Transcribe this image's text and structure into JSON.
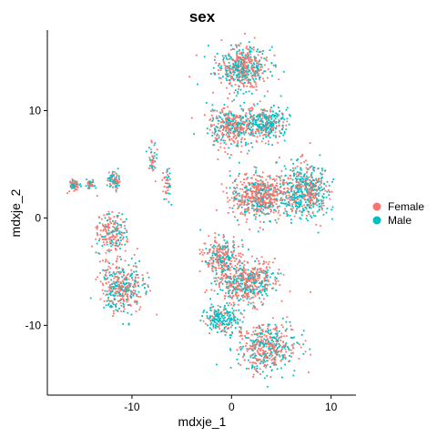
{
  "chart_data": {
    "type": "scatter",
    "title": "sex",
    "xlabel": "mdxje_1",
    "ylabel": "mdxje_2",
    "xlim": [
      -18.5,
      12.5
    ],
    "ylim": [
      -16.5,
      17.5
    ],
    "x_ticks": [
      -10,
      0,
      10
    ],
    "x_tick_labels": [
      "-10",
      "0",
      "10"
    ],
    "y_ticks": [
      -10,
      0,
      10
    ],
    "y_tick_labels": [
      "-10",
      "0",
      "10"
    ],
    "grid": false,
    "legend_position": "right",
    "series": [
      {
        "name": "Female",
        "color": "#F8766D"
      },
      {
        "name": "Male",
        "color": "#00BFC4"
      }
    ],
    "clusters": [
      {
        "center": [
          1.0,
          14.0
        ],
        "spread": [
          2.6,
          2.0
        ],
        "count": 520,
        "male_fraction": 0.45
      },
      {
        "center": [
          0.0,
          8.5
        ],
        "spread": [
          2.4,
          1.8
        ],
        "count": 380,
        "male_fraction": 0.35
      },
      {
        "center": [
          3.5,
          8.8
        ],
        "spread": [
          2.2,
          1.5
        ],
        "count": 300,
        "male_fraction": 0.7
      },
      {
        "center": [
          3.0,
          2.0
        ],
        "spread": [
          3.0,
          2.2
        ],
        "count": 620,
        "male_fraction": 0.3
      },
      {
        "center": [
          7.5,
          2.5
        ],
        "spread": [
          2.2,
          2.5
        ],
        "count": 500,
        "male_fraction": 0.6
      },
      {
        "center": [
          -1.0,
          -3.5
        ],
        "spread": [
          1.8,
          1.5
        ],
        "count": 250,
        "male_fraction": 0.4
      },
      {
        "center": [
          1.5,
          -6.0
        ],
        "spread": [
          3.0,
          2.0
        ],
        "count": 520,
        "male_fraction": 0.35
      },
      {
        "center": [
          -1.0,
          -9.5
        ],
        "spread": [
          1.8,
          1.3
        ],
        "count": 200,
        "male_fraction": 0.75
      },
      {
        "center": [
          3.5,
          -12.0
        ],
        "spread": [
          3.0,
          2.2
        ],
        "count": 480,
        "male_fraction": 0.4
      },
      {
        "center": [
          -12.0,
          -1.5
        ],
        "spread": [
          1.5,
          2.0
        ],
        "count": 200,
        "male_fraction": 0.35
      },
      {
        "center": [
          -11.0,
          -6.5
        ],
        "spread": [
          2.2,
          2.2
        ],
        "count": 380,
        "male_fraction": 0.4
      },
      {
        "center": [
          -15.8,
          3.0
        ],
        "spread": [
          0.6,
          0.5
        ],
        "count": 70,
        "male_fraction": 0.4
      },
      {
        "center": [
          -14.2,
          3.2
        ],
        "spread": [
          0.4,
          0.6
        ],
        "count": 35,
        "male_fraction": 0.4
      },
      {
        "center": [
          -11.8,
          3.5
        ],
        "spread": [
          0.6,
          0.8
        ],
        "count": 80,
        "male_fraction": 0.45
      },
      {
        "center": [
          -8.0,
          5.5
        ],
        "spread": [
          0.5,
          1.5
        ],
        "count": 45,
        "male_fraction": 0.5
      },
      {
        "center": [
          -6.5,
          3.0
        ],
        "spread": [
          0.4,
          1.8
        ],
        "count": 40,
        "male_fraction": 0.5
      }
    ]
  }
}
